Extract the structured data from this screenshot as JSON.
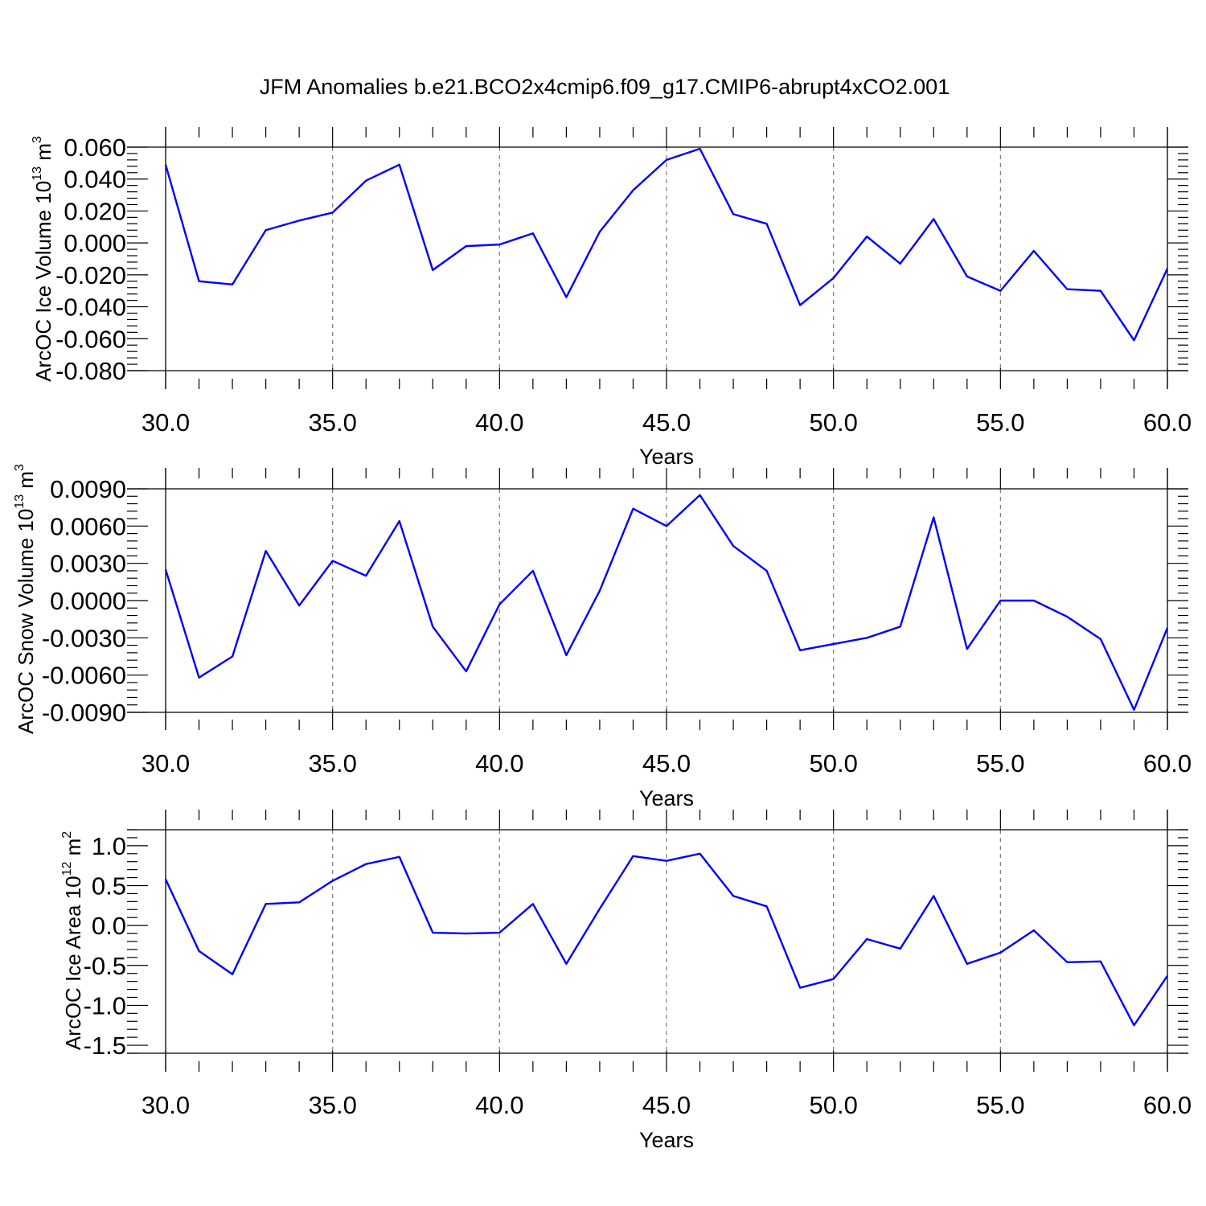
{
  "title": "JFM Anomalies b.e21.BCO2x4cmip6.f09_g17.CMIP6-abrupt4xCO2.001",
  "colors": {
    "line": "#0000ff",
    "axis": "#000000",
    "grid": "#777777"
  },
  "chart_data": [
    {
      "type": "line",
      "xlabel": "Years",
      "ylabel": {
        "base": "ArcOC Ice Volume 10",
        "exp": "13",
        "unit": " m",
        "unit_exp": "3"
      },
      "xlim": [
        30,
        60
      ],
      "ylim": [
        -0.08,
        0.06
      ],
      "x_ticks": [
        "30.0",
        "35.0",
        "40.0",
        "45.0",
        "50.0",
        "55.0",
        "60.0"
      ],
      "y_ticks": [
        "0.060",
        "0.040",
        "0.020",
        "0.000",
        "-0.020",
        "-0.040",
        "-0.060",
        "-0.080"
      ],
      "y_tick_values": [
        0.06,
        0.04,
        0.02,
        0.0,
        -0.02,
        -0.04,
        -0.06,
        -0.08
      ],
      "grid": "x-dashed",
      "x": [
        30,
        31,
        32,
        33,
        34,
        35,
        36,
        37,
        38,
        39,
        40,
        41,
        42,
        43,
        44,
        45,
        46,
        47,
        48,
        49,
        50,
        51,
        52,
        53,
        54,
        55,
        56,
        57,
        58,
        59,
        60
      ],
      "series": [
        {
          "values": [
            0.049,
            -0.024,
            -0.026,
            0.008,
            0.014,
            0.019,
            0.039,
            0.049,
            -0.017,
            -0.002,
            -0.001,
            0.006,
            -0.034,
            0.007,
            0.033,
            0.052,
            0.059,
            0.018,
            0.012,
            -0.039,
            -0.022,
            0.004,
            -0.013,
            0.015,
            -0.021,
            -0.03,
            -0.005,
            -0.029,
            -0.03,
            -0.061,
            -0.016
          ]
        }
      ]
    },
    {
      "type": "line",
      "xlabel": "Years",
      "ylabel": {
        "base": "ArcOC Snow Volume 10",
        "exp": "13",
        "unit": " m",
        "unit_exp": "3"
      },
      "xlim": [
        30,
        60
      ],
      "ylim": [
        -0.009,
        0.009
      ],
      "x_ticks": [
        "30.0",
        "35.0",
        "40.0",
        "45.0",
        "50.0",
        "55.0",
        "60.0"
      ],
      "y_ticks": [
        "0.0090",
        "0.0060",
        "0.0030",
        "0.0000",
        "-0.0030",
        "-0.0060",
        "-0.0090"
      ],
      "y_tick_values": [
        0.009,
        0.006,
        0.003,
        0.0,
        -0.003,
        -0.006,
        -0.009
      ],
      "grid": "x-dashed",
      "x": [
        30,
        31,
        32,
        33,
        34,
        35,
        36,
        37,
        38,
        39,
        40,
        41,
        42,
        43,
        44,
        45,
        46,
        47,
        48,
        49,
        50,
        51,
        52,
        53,
        54,
        55,
        56,
        57,
        58,
        59,
        60
      ],
      "series": [
        {
          "values": [
            0.0025,
            -0.0062,
            -0.0045,
            0.004,
            -0.0004,
            0.0032,
            0.002,
            0.0064,
            -0.0021,
            -0.0057,
            -0.0003,
            0.0024,
            -0.0044,
            0.0008,
            0.0074,
            0.006,
            0.0085,
            0.0044,
            0.0024,
            -0.004,
            -0.0035,
            -0.003,
            -0.0021,
            0.0067,
            -0.0039,
            0.0,
            0.0,
            -0.0013,
            -0.0031,
            -0.0088,
            -0.0022
          ]
        }
      ]
    },
    {
      "type": "line",
      "xlabel": "Years",
      "ylabel": {
        "base": "ArcOC Ice Area 10",
        "exp": "12",
        "unit": " m",
        "unit_exp": "2"
      },
      "xlim": [
        30,
        60
      ],
      "ylim": [
        -1.6,
        1.2
      ],
      "x_ticks": [
        "30.0",
        "35.0",
        "40.0",
        "45.0",
        "50.0",
        "55.0",
        "60.0"
      ],
      "y_ticks": [
        "1.0",
        "0.5",
        "0.0",
        "-0.5",
        "-1.0",
        "-1.5"
      ],
      "y_tick_values": [
        1.0,
        0.5,
        0.0,
        -0.5,
        -1.0,
        -1.5
      ],
      "grid": "x-dashed",
      "x": [
        30,
        31,
        32,
        33,
        34,
        35,
        36,
        37,
        38,
        39,
        40,
        41,
        42,
        43,
        44,
        45,
        46,
        47,
        48,
        49,
        50,
        51,
        52,
        53,
        54,
        55,
        56,
        57,
        58,
        59,
        60
      ],
      "series": [
        {
          "values": [
            0.58,
            -0.32,
            -0.61,
            0.27,
            0.29,
            0.56,
            0.77,
            0.86,
            -0.09,
            -0.1,
            -0.09,
            0.27,
            -0.48,
            0.21,
            0.87,
            0.81,
            0.9,
            0.37,
            0.24,
            -0.78,
            -0.67,
            -0.17,
            -0.29,
            0.37,
            -0.48,
            -0.34,
            -0.06,
            -0.46,
            -0.45,
            -1.25,
            -0.63
          ]
        }
      ]
    }
  ]
}
